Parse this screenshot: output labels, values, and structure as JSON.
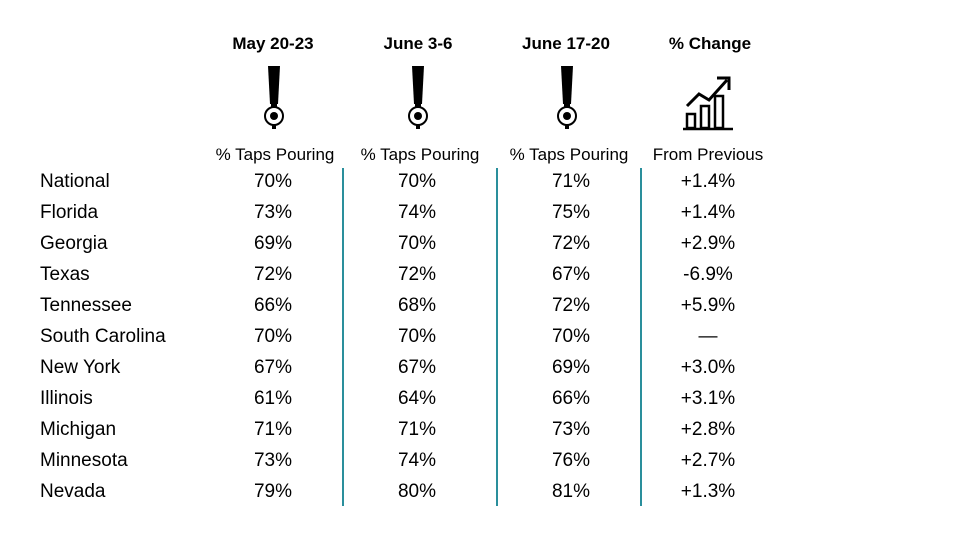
{
  "chart_data": {
    "type": "table",
    "columns": [
      {
        "header": "May 20-23",
        "subheader": "% Taps Pouring",
        "icon": "beer-tap-icon"
      },
      {
        "header": "June 3-6",
        "subheader": "% Taps Pouring",
        "icon": "beer-tap-icon"
      },
      {
        "header": "June 17-20",
        "subheader": "% Taps Pouring",
        "icon": "beer-tap-icon"
      },
      {
        "header": "% Change",
        "subheader": "From Previous",
        "icon": "growth-chart-icon"
      }
    ],
    "rows": [
      {
        "label": "National",
        "values": [
          "70%",
          "70%",
          "71%",
          "+1.4%"
        ]
      },
      {
        "label": "Florida",
        "values": [
          "73%",
          "74%",
          "75%",
          "+1.4%"
        ]
      },
      {
        "label": "Georgia",
        "values": [
          "69%",
          "70%",
          "72%",
          "+2.9%"
        ]
      },
      {
        "label": "Texas",
        "values": [
          "72%",
          "72%",
          "67%",
          "-6.9%"
        ]
      },
      {
        "label": "Tennessee",
        "values": [
          "66%",
          "68%",
          "72%",
          "+5.9%"
        ]
      },
      {
        "label": "South Carolina",
        "values": [
          "70%",
          "70%",
          "70%",
          "—"
        ]
      },
      {
        "label": "New York",
        "values": [
          "67%",
          "67%",
          "69%",
          "+3.0%"
        ]
      },
      {
        "label": "Illinois",
        "values": [
          "61%",
          "64%",
          "66%",
          "+3.1%"
        ]
      },
      {
        "label": "Michigan",
        "values": [
          "71%",
          "71%",
          "73%",
          "+2.8%"
        ]
      },
      {
        "label": "Minnesota",
        "values": [
          "73%",
          "74%",
          "76%",
          "+2.7%"
        ]
      },
      {
        "label": "Nevada",
        "values": [
          "79%",
          "80%",
          "81%",
          "+1.3%"
        ]
      }
    ],
    "colors": {
      "divider": "#2a8f9c"
    }
  }
}
